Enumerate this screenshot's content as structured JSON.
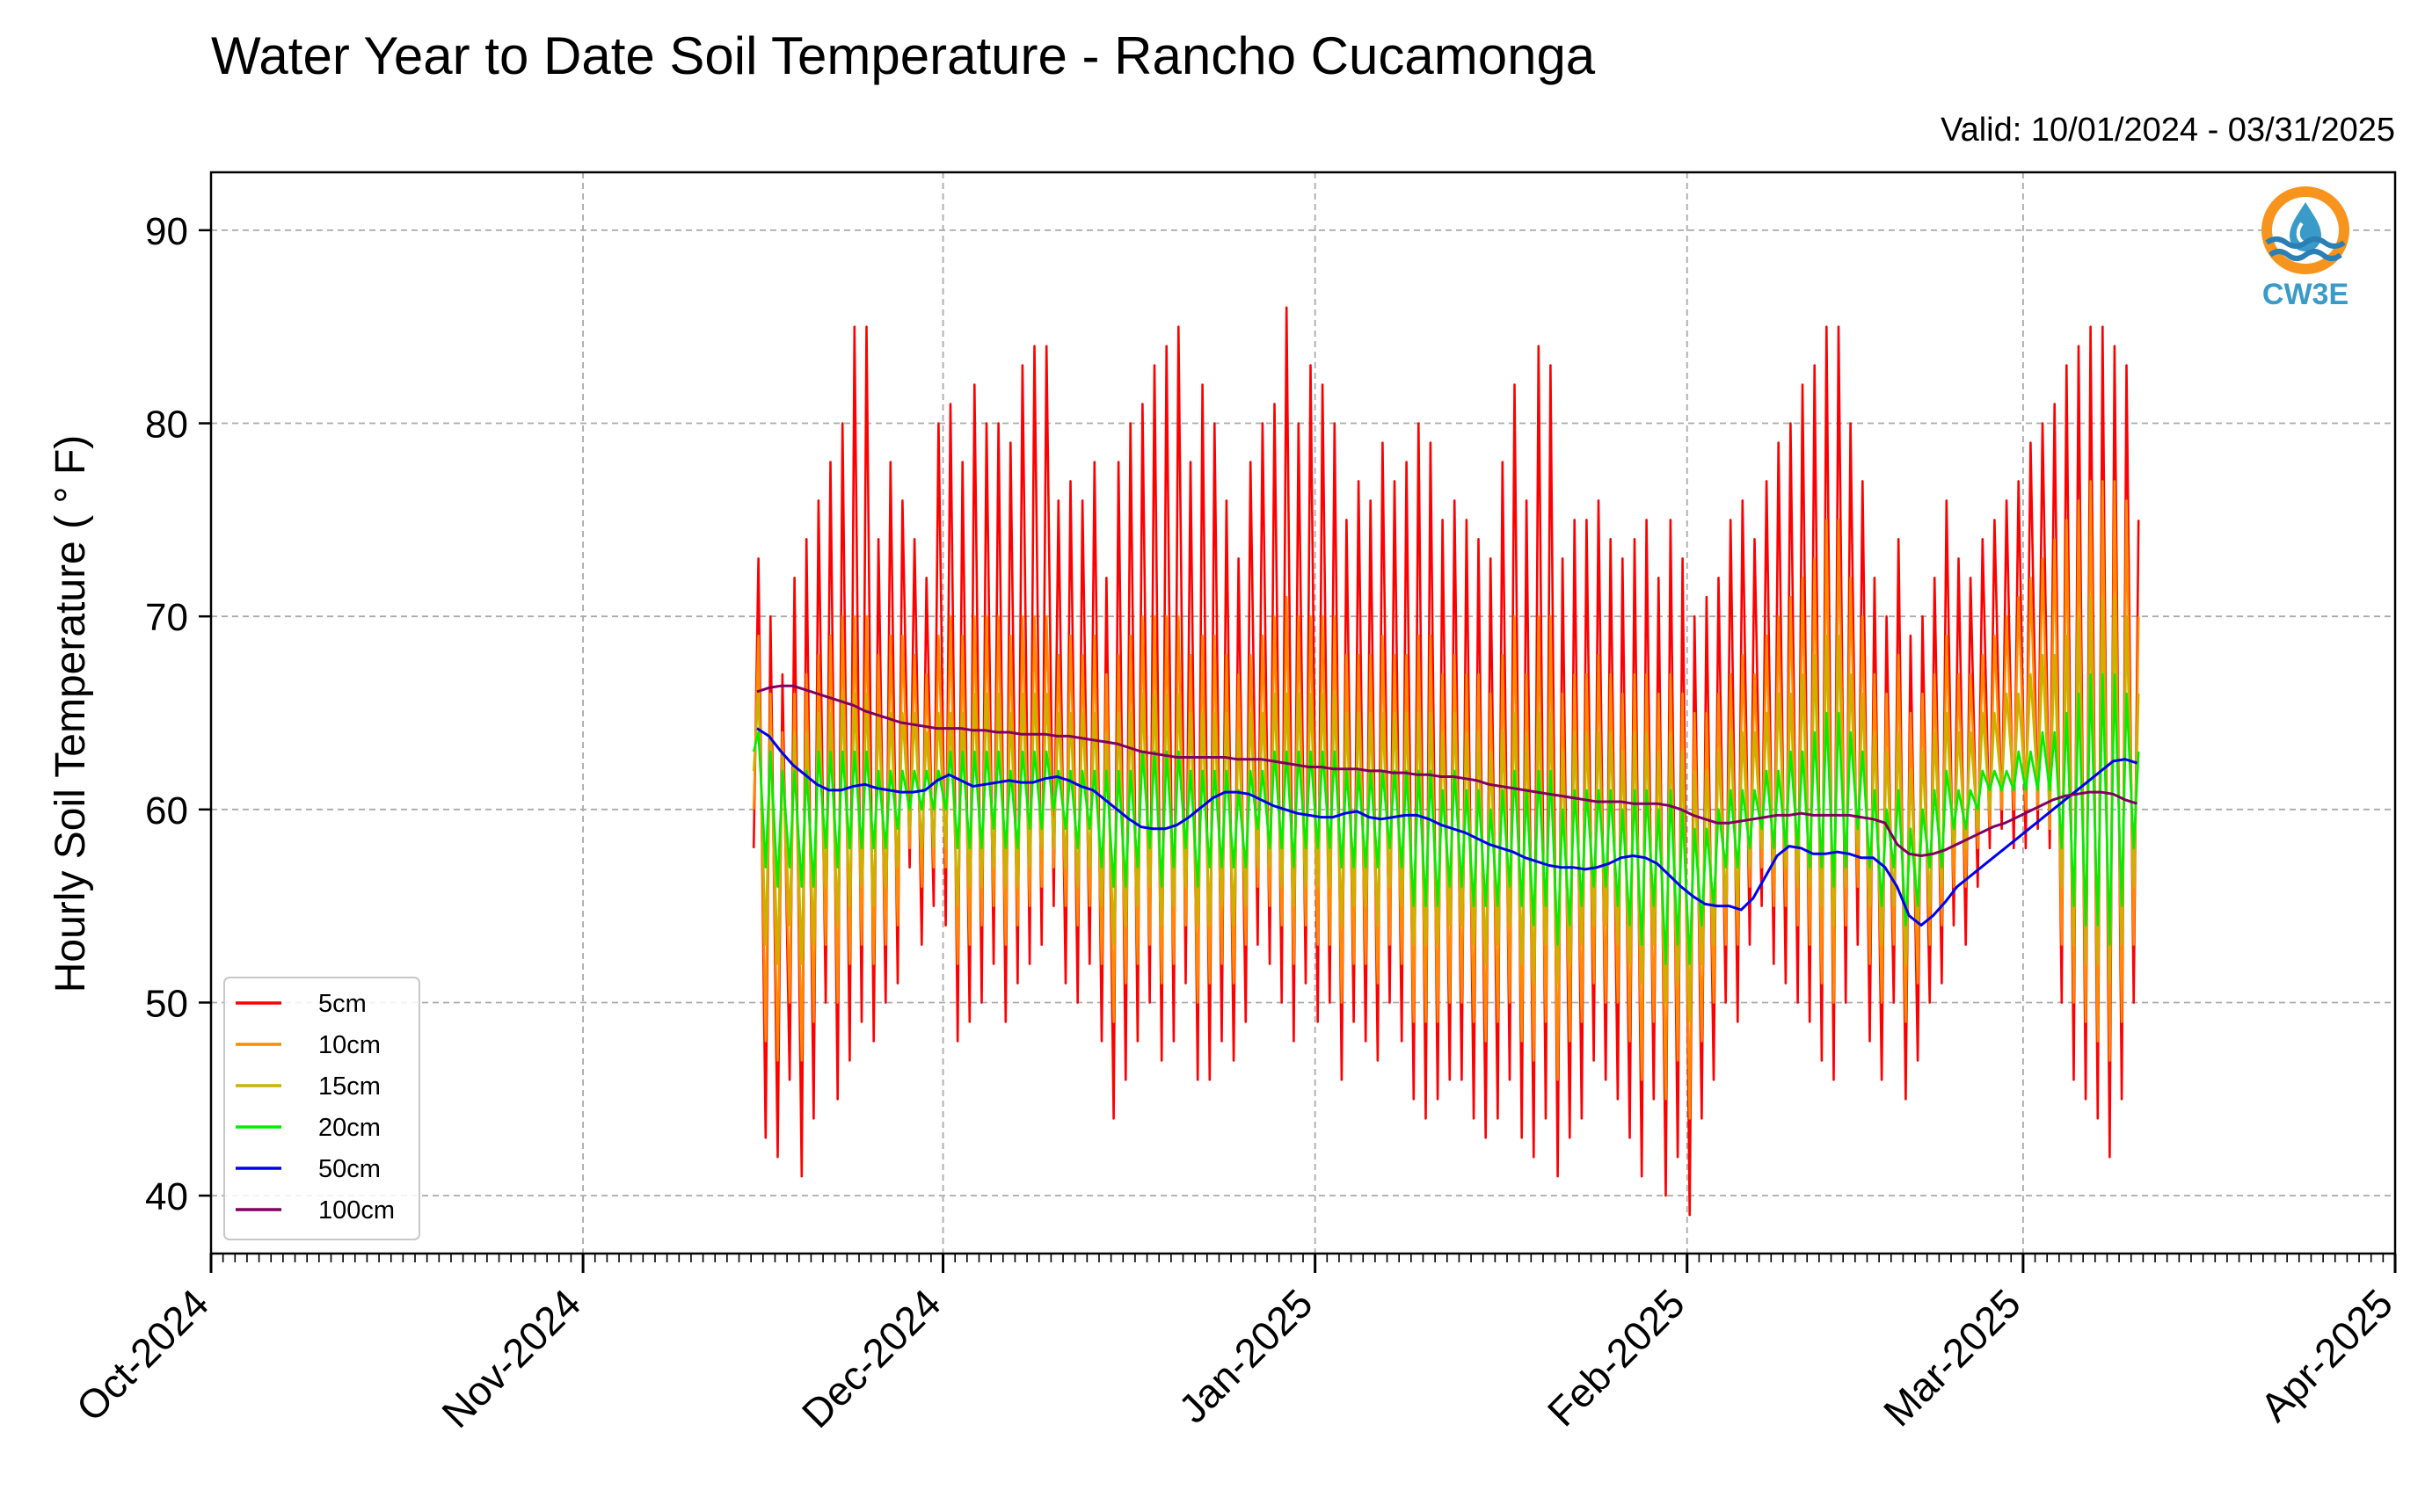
{
  "title": "Water Year to Date Soil Temperature - Rancho Cucamonga",
  "valid_range": "Valid: 10/01/2024 - 03/31/2025",
  "logo": {
    "text": "CW3E",
    "icon": "water-drop-logo-icon",
    "colors": {
      "ring": "#f7941d",
      "drop": "#3a9bc9",
      "waves": "#2a7fb4"
    }
  },
  "colors": {
    "grid": "#aaaaaa",
    "axis": "#000000"
  },
  "chart_data": {
    "type": "line",
    "title": "Water Year to Date Soil Temperature - Rancho Cucamonga",
    "xlabel": "",
    "ylabel": "Hourly Soil Temperature ( ° F)",
    "ylim": [
      37,
      93
    ],
    "yticks": [
      40,
      50,
      60,
      70,
      80,
      90
    ],
    "xlim": [
      "2024-10-01",
      "2025-04-01"
    ],
    "xticks": [
      {
        "date": "2024-10-01",
        "label": "Oct-2024"
      },
      {
        "date": "2024-11-01",
        "label": "Nov-2024"
      },
      {
        "date": "2024-12-01",
        "label": "Dec-2024"
      },
      {
        "date": "2025-01-01",
        "label": "Jan-2025"
      },
      {
        "date": "2025-02-01",
        "label": "Feb-2025"
      },
      {
        "date": "2025-03-01",
        "label": "Mar-2025"
      },
      {
        "date": "2025-04-01",
        "label": "Apr-2025"
      }
    ],
    "grid": true,
    "legend_position": "lower left",
    "data_interval": "daily maximum and minimum of hourly values (approximate)",
    "start_date": "2024-11-15",
    "series": [
      {
        "name": "5cm",
        "color": "#ff0000",
        "max": [
          73,
          70,
          67,
          72,
          74,
          76,
          78,
          80,
          85,
          85,
          74,
          78,
          76,
          74,
          72,
          80,
          81,
          78,
          82,
          80,
          80,
          79,
          83,
          84,
          84,
          76,
          77,
          76,
          78,
          72,
          78,
          80,
          81,
          83,
          84,
          85,
          78,
          82,
          80,
          76,
          73,
          78,
          80,
          81,
          86,
          80,
          83,
          82,
          80,
          75,
          77,
          76,
          79,
          77,
          78,
          80,
          79,
          75,
          76,
          75,
          74,
          73,
          78,
          82,
          76,
          84,
          83,
          73,
          75,
          75,
          76,
          74,
          73,
          74,
          75,
          72,
          75,
          73,
          70,
          71,
          72,
          75,
          76,
          74,
          77,
          79,
          80,
          82,
          83,
          85,
          85,
          80,
          77,
          72,
          70,
          74,
          69,
          70,
          72,
          76,
          73,
          72,
          74,
          75,
          76,
          77,
          79,
          80,
          81,
          83,
          84,
          85,
          85,
          84,
          83,
          75
        ],
        "min": [
          58,
          43,
          42,
          46,
          41,
          44,
          50,
          45,
          47,
          49,
          48,
          50,
          51,
          57,
          53,
          55,
          54,
          48,
          49,
          50,
          52,
          49,
          51,
          52,
          53,
          55,
          51,
          50,
          52,
          48,
          44,
          46,
          48,
          50,
          47,
          48,
          51,
          46,
          46,
          48,
          47,
          49,
          53,
          52,
          50,
          48,
          51,
          49,
          50,
          46,
          49,
          48,
          47,
          50,
          48,
          45,
          44,
          45,
          46,
          46,
          44,
          43,
          44,
          46,
          43,
          42,
          44,
          41,
          43,
          44,
          47,
          46,
          45,
          43,
          41,
          45,
          40,
          42,
          39,
          44,
          46,
          50,
          49,
          53,
          55,
          52,
          51,
          50,
          49,
          47,
          46,
          50,
          53,
          48,
          46,
          50,
          45,
          47,
          50,
          51,
          54,
          53,
          56,
          58,
          59,
          58,
          58,
          59,
          58,
          50,
          46,
          45,
          44,
          42,
          45,
          50
        ]
      },
      {
        "name": "10cm",
        "color": "#ff8c00",
        "max": [
          69,
          66,
          64,
          66,
          67,
          68,
          69,
          70,
          70,
          70,
          68,
          69,
          69,
          68,
          67,
          69,
          70,
          69,
          70,
          70,
          70,
          69,
          70,
          70,
          70,
          68,
          69,
          68,
          69,
          67,
          68,
          69,
          70,
          70,
          70,
          70,
          68,
          69,
          69,
          68,
          67,
          68,
          69,
          70,
          71,
          70,
          70,
          70,
          70,
          68,
          68,
          68,
          69,
          68,
          68,
          69,
          69,
          67,
          68,
          67,
          67,
          66,
          68,
          70,
          67,
          70,
          70,
          66,
          67,
          67,
          68,
          67,
          66,
          67,
          67,
          66,
          67,
          66,
          65,
          65,
          66,
          67,
          68,
          67,
          69,
          70,
          71,
          72,
          73,
          75,
          75,
          72,
          70,
          67,
          66,
          68,
          65,
          66,
          67,
          69,
          67,
          67,
          68,
          69,
          70,
          71,
          72,
          73,
          74,
          75,
          76,
          77,
          77,
          77,
          76,
          70
        ],
        "min": [
          60,
          48,
          47,
          50,
          47,
          49,
          53,
          50,
          52,
          53,
          52,
          53,
          54,
          58,
          56,
          57,
          57,
          52,
          53,
          54,
          55,
          53,
          54,
          55,
          56,
          57,
          55,
          54,
          55,
          52,
          49,
          51,
          52,
          53,
          51,
          52,
          54,
          50,
          51,
          52,
          51,
          53,
          56,
          55,
          54,
          52,
          54,
          53,
          53,
          50,
          52,
          52,
          51,
          53,
          52,
          49,
          49,
          49,
          50,
          50,
          49,
          48,
          49,
          50,
          48,
          47,
          49,
          46,
          48,
          49,
          51,
          50,
          50,
          48,
          46,
          49,
          45,
          47,
          44,
          48,
          50,
          53,
          53,
          56,
          57,
          55,
          55,
          54,
          53,
          51,
          50,
          54,
          56,
          52,
          50,
          53,
          49,
          51,
          53,
          54,
          56,
          56,
          58,
          59,
          60,
          60,
          60,
          60,
          59,
          53,
          50,
          49,
          48,
          47,
          49,
          53
        ]
      },
      {
        "name": "15cm",
        "color": "#c8b400",
        "max": [
          66,
          64,
          63,
          64,
          64,
          65,
          65,
          66,
          66,
          66,
          65,
          65,
          65,
          65,
          64,
          65,
          65,
          65,
          66,
          66,
          66,
          65,
          66,
          66,
          66,
          65,
          65,
          65,
          65,
          64,
          65,
          65,
          66,
          66,
          66,
          66,
          65,
          65,
          65,
          65,
          64,
          65,
          65,
          66,
          66,
          66,
          66,
          66,
          66,
          65,
          65,
          65,
          65,
          65,
          65,
          65,
          65,
          64,
          65,
          64,
          64,
          63,
          64,
          65,
          64,
          65,
          65,
          63,
          64,
          64,
          64,
          64,
          63,
          64,
          64,
          63,
          64,
          63,
          62,
          62,
          63,
          64,
          64,
          64,
          65,
          66,
          66,
          67,
          68,
          69,
          69,
          67,
          66,
          64,
          63,
          64,
          62,
          63,
          64,
          65,
          64,
          64,
          65,
          65,
          66,
          66,
          67,
          68,
          68,
          69,
          70,
          71,
          71,
          71,
          70,
          66
        ],
        "min": [
          62,
          53,
          52,
          54,
          52,
          53,
          56,
          54,
          55,
          56,
          55,
          56,
          57,
          59,
          58,
          58,
          58,
          55,
          56,
          56,
          57,
          56,
          56,
          57,
          58,
          58,
          57,
          56,
          57,
          55,
          53,
          54,
          55,
          56,
          54,
          55,
          56,
          54,
          54,
          55,
          54,
          55,
          57,
          57,
          56,
          55,
          56,
          56,
          56,
          54,
          55,
          55,
          54,
          56,
          55,
          53,
          53,
          53,
          54,
          54,
          53,
          52,
          53,
          54,
          52,
          51,
          53,
          51,
          52,
          53,
          54,
          54,
          53,
          52,
          51,
          53,
          50,
          51,
          49,
          52,
          53,
          55,
          55,
          57,
          58,
          57,
          57,
          56,
          56,
          55,
          54,
          56,
          58,
          55,
          53,
          55,
          52,
          54,
          55,
          56,
          58,
          58,
          59,
          60,
          61,
          61,
          61,
          61,
          60,
          56,
          53,
          52,
          52,
          51,
          53,
          56
        ]
      },
      {
        "name": "20cm",
        "color": "#00ee00",
        "max": [
          64,
          63,
          62,
          62,
          62,
          63,
          63,
          63,
          63,
          63,
          62,
          62,
          62,
          62,
          62,
          62,
          63,
          63,
          63,
          63,
          63,
          62,
          63,
          63,
          63,
          62,
          62,
          62,
          62,
          62,
          62,
          62,
          63,
          63,
          63,
          63,
          62,
          62,
          62,
          62,
          61,
          62,
          62,
          63,
          63,
          63,
          63,
          63,
          63,
          62,
          62,
          62,
          62,
          62,
          62,
          62,
          62,
          61,
          62,
          61,
          61,
          60,
          61,
          62,
          61,
          62,
          62,
          60,
          61,
          61,
          61,
          61,
          60,
          61,
          61,
          60,
          61,
          60,
          59,
          59,
          60,
          61,
          61,
          61,
          62,
          62,
          63,
          63,
          64,
          65,
          65,
          64,
          63,
          61,
          60,
          61,
          59,
          60,
          61,
          62,
          61,
          61,
          62,
          62,
          62,
          63,
          63,
          64,
          64,
          65,
          66,
          67,
          67,
          67,
          66,
          63
        ],
        "min": [
          63,
          57,
          56,
          57,
          56,
          56,
          58,
          57,
          58,
          58,
          58,
          58,
          59,
          60,
          60,
          60,
          60,
          58,
          58,
          58,
          59,
          58,
          58,
          59,
          59,
          60,
          59,
          58,
          59,
          57,
          56,
          56,
          57,
          58,
          56,
          57,
          58,
          56,
          57,
          57,
          57,
          57,
          59,
          58,
          58,
          57,
          58,
          58,
          58,
          57,
          57,
          57,
          57,
          58,
          57,
          55,
          55,
          55,
          56,
          56,
          55,
          55,
          55,
          56,
          55,
          54,
          55,
          53,
          54,
          55,
          56,
          56,
          55,
          54,
          53,
          55,
          52,
          53,
          52,
          54,
          55,
          57,
          57,
          58,
          59,
          58,
          58,
          58,
          57,
          57,
          56,
          57,
          59,
          57,
          55,
          57,
          54,
          55,
          57,
          57,
          59,
          59,
          60,
          61,
          61,
          61,
          61,
          61,
          61,
          58,
          55,
          54,
          54,
          53,
          55,
          58
        ]
      },
      {
        "name": "50cm",
        "color": "#0000ee",
        "values": [
          64.2,
          63.8,
          63.0,
          62.3,
          61.8,
          61.3,
          61.0,
          61.0,
          61.2,
          61.3,
          61.1,
          61.0,
          60.9,
          60.9,
          61.0,
          61.5,
          61.8,
          61.5,
          61.2,
          61.3,
          61.4,
          61.5,
          61.4,
          61.4,
          61.6,
          61.7,
          61.5,
          61.2,
          61.0,
          60.5,
          60.0,
          59.5,
          59.1,
          59.0,
          59.0,
          59.2,
          59.6,
          60.1,
          60.6,
          60.9,
          60.9,
          60.8,
          60.5,
          60.2,
          60.0,
          59.8,
          59.7,
          59.6,
          59.6,
          59.8,
          59.9,
          59.6,
          59.5,
          59.6,
          59.7,
          59.7,
          59.5,
          59.2,
          59.0,
          58.8,
          58.5,
          58.2,
          58.0,
          57.8,
          57.5,
          57.3,
          57.1,
          57.0,
          57.0,
          56.9,
          57.0,
          57.2,
          57.5,
          57.6,
          57.5,
          57.2,
          56.6,
          56.0,
          55.5,
          55.1,
          55.0,
          55.0,
          54.8,
          55.4,
          56.5,
          57.6,
          58.1,
          58.0,
          57.7,
          57.7,
          57.8,
          57.7,
          57.5,
          57.5,
          57.0,
          56.0,
          54.5,
          54.0,
          54.5,
          55.2,
          56.0,
          56.5,
          57.0,
          57.5,
          58.0,
          58.5,
          59.0,
          59.5,
          60.0,
          60.5,
          61.0,
          61.5,
          62.0,
          62.5,
          62.6,
          62.4
        ]
      },
      {
        "name": "100cm",
        "color": "#800060",
        "values": [
          66.1,
          66.3,
          66.4,
          66.4,
          66.2,
          66.0,
          65.8,
          65.6,
          65.4,
          65.1,
          64.9,
          64.7,
          64.5,
          64.4,
          64.3,
          64.2,
          64.2,
          64.2,
          64.1,
          64.1,
          64.0,
          64.0,
          63.9,
          63.9,
          63.9,
          63.8,
          63.8,
          63.7,
          63.6,
          63.5,
          63.4,
          63.2,
          63.0,
          62.9,
          62.8,
          62.7,
          62.7,
          62.7,
          62.7,
          62.7,
          62.6,
          62.6,
          62.6,
          62.5,
          62.4,
          62.3,
          62.2,
          62.2,
          62.1,
          62.1,
          62.1,
          62.0,
          62.0,
          61.9,
          61.9,
          61.8,
          61.8,
          61.7,
          61.7,
          61.6,
          61.5,
          61.3,
          61.2,
          61.1,
          61.0,
          60.9,
          60.8,
          60.7,
          60.6,
          60.5,
          60.4,
          60.4,
          60.4,
          60.3,
          60.3,
          60.3,
          60.2,
          60.0,
          59.7,
          59.5,
          59.3,
          59.3,
          59.4,
          59.5,
          59.6,
          59.7,
          59.7,
          59.8,
          59.7,
          59.7,
          59.7,
          59.7,
          59.6,
          59.5,
          59.3,
          58.2,
          57.7,
          57.6,
          57.7,
          57.9,
          58.2,
          58.5,
          58.8,
          59.1,
          59.3,
          59.6,
          59.9,
          60.2,
          60.5,
          60.7,
          60.8,
          60.9,
          60.9,
          60.8,
          60.5,
          60.3
        ]
      }
    ]
  }
}
